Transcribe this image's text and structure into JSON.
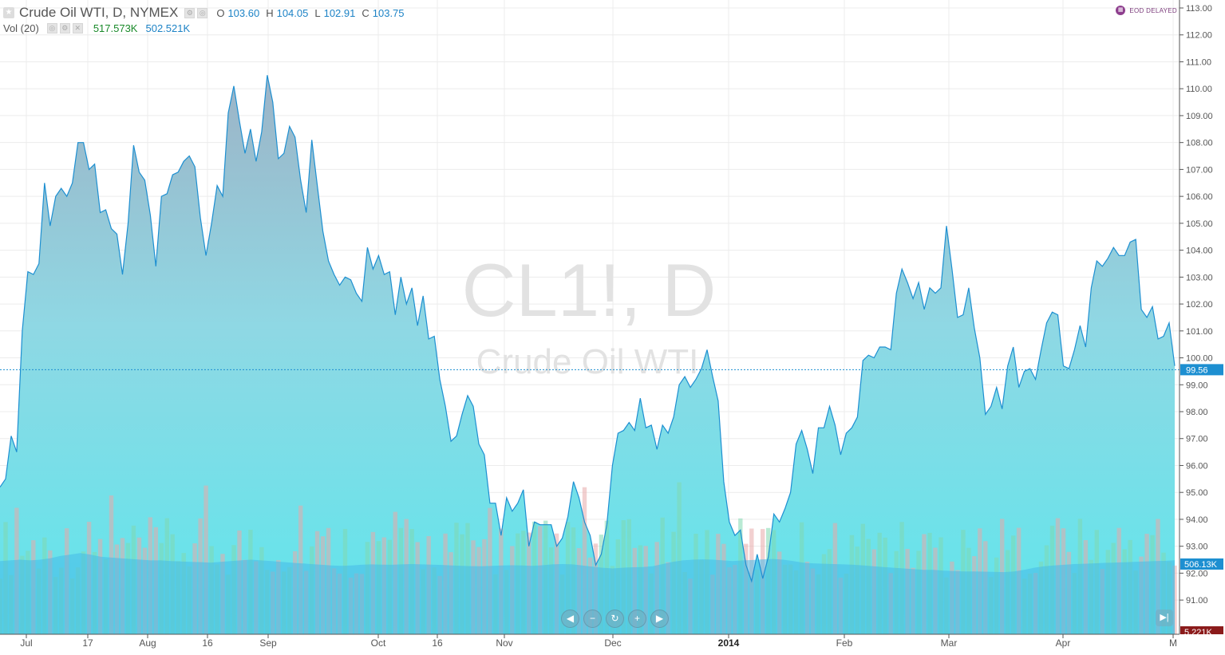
{
  "header": {
    "title": "Crude Oil WTI, D, NYMEX",
    "ohlc": [
      {
        "key": "O",
        "value": "103.60"
      },
      {
        "key": "H",
        "value": "104.05"
      },
      {
        "key": "L",
        "value": "102.91"
      },
      {
        "key": "C",
        "value": "103.75"
      }
    ]
  },
  "volume_legend": {
    "label": "Vol (20)",
    "value1": "517.573K",
    "value2": "502.521K"
  },
  "eod_badge": "EOD DELAYED",
  "watermark": {
    "symbol": "CL1!, D",
    "name": "Crude Oil WTI"
  },
  "price_scale_labels": [
    "113.00",
    "112.00",
    "111.00",
    "110.00",
    "109.00",
    "108.00",
    "107.00",
    "106.00",
    "105.00",
    "104.00",
    "103.00",
    "102.00",
    "101.00",
    "100.00",
    "99.00",
    "98.00",
    "97.00",
    "96.00",
    "95.00",
    "94.00",
    "93.00",
    "92.00",
    "91.00"
  ],
  "current_price_label": "99.56",
  "volume_ma_label": "506.13K",
  "volume_last_label": "5.221K",
  "time_labels": [
    "Jul",
    "17",
    "Aug",
    "16",
    "Sep",
    "Oct",
    "16",
    "Nov",
    "Dec",
    "2014",
    "Feb",
    "Mar",
    "Apr",
    "M"
  ],
  "nav_buttons": [
    "scroll-left",
    "zoom-out",
    "reset",
    "zoom-in",
    "scroll-right"
  ],
  "colors": {
    "line": "#1d8fd1",
    "price_tag": "#1d8fd1",
    "volume_up": "#7fd9b0",
    "volume_down": "#e7a9a9",
    "volume_ma": "#45b9e8"
  },
  "chart_data": {
    "type": "area",
    "title": "Crude Oil WTI, D, NYMEX",
    "y_range": [
      90.5,
      113.0
    ],
    "last_price": 99.56,
    "price_series": [
      {
        "x": "Jun 24",
        "y": 95.2
      },
      {
        "x": "Jun 27",
        "y": 95.5
      },
      {
        "x": "Jul 1",
        "y": 97.1
      },
      {
        "x": "Jul 2",
        "y": 96.5
      },
      {
        "x": "Jul 5",
        "y": 101.0
      },
      {
        "x": "Jul 9",
        "y": 103.2
      },
      {
        "x": "Jul 10",
        "y": 103.1
      },
      {
        "x": "Jul 11",
        "y": 103.5
      },
      {
        "x": "Jul 12",
        "y": 106.5
      },
      {
        "x": "Jul 14",
        "y": 104.9
      },
      {
        "x": "Jul 15",
        "y": 106.0
      },
      {
        "x": "Jul 16",
        "y": 106.3
      },
      {
        "x": "Jul 17",
        "y": 106.0
      },
      {
        "x": "Jul 18",
        "y": 106.5
      },
      {
        "x": "Jul 19",
        "y": 108.0
      },
      {
        "x": "Jul 20",
        "y": 108.0
      },
      {
        "x": "Jul 22",
        "y": 107.0
      },
      {
        "x": "Jul 23",
        "y": 107.2
      },
      {
        "x": "Jul 24",
        "y": 105.4
      },
      {
        "x": "Jul 25",
        "y": 105.5
      },
      {
        "x": "Jul 26",
        "y": 104.8
      },
      {
        "x": "Jul 29",
        "y": 104.6
      },
      {
        "x": "Jul 30",
        "y": 103.1
      },
      {
        "x": "Jul 31",
        "y": 105.0
      },
      {
        "x": "Aug 1",
        "y": 107.9
      },
      {
        "x": "Aug 2",
        "y": 106.9
      },
      {
        "x": "Aug 5",
        "y": 106.6
      },
      {
        "x": "Aug 6",
        "y": 105.3
      },
      {
        "x": "Aug 8",
        "y": 103.4
      },
      {
        "x": "Aug 9",
        "y": 106.0
      },
      {
        "x": "Aug 12",
        "y": 106.1
      },
      {
        "x": "Aug 13",
        "y": 106.8
      },
      {
        "x": "Aug 14",
        "y": 106.9
      },
      {
        "x": "Aug 15",
        "y": 107.3
      },
      {
        "x": "Aug 16",
        "y": 107.5
      },
      {
        "x": "Aug 17",
        "y": 107.1
      },
      {
        "x": "Aug 19",
        "y": 105.2
      },
      {
        "x": "Aug 20",
        "y": 103.8
      },
      {
        "x": "Aug 21",
        "y": 105.0
      },
      {
        "x": "Aug 22",
        "y": 106.4
      },
      {
        "x": "Aug 23",
        "y": 106.0
      },
      {
        "x": "Aug 26",
        "y": 109.1
      },
      {
        "x": "Aug 27",
        "y": 110.1
      },
      {
        "x": "Aug 28",
        "y": 108.8
      },
      {
        "x": "Aug 29",
        "y": 107.6
      },
      {
        "x": "Aug 30",
        "y": 108.5
      },
      {
        "x": "Sep 3",
        "y": 107.3
      },
      {
        "x": "Sep 4",
        "y": 108.4
      },
      {
        "x": "Sep 5",
        "y": 110.5
      },
      {
        "x": "Sep 6",
        "y": 109.5
      },
      {
        "x": "Sep 9",
        "y": 107.4
      },
      {
        "x": "Sep 10",
        "y": 107.6
      },
      {
        "x": "Sep 11",
        "y": 108.6
      },
      {
        "x": "Sep 12",
        "y": 108.2
      },
      {
        "x": "Sep 13",
        "y": 106.6
      },
      {
        "x": "Sep 16",
        "y": 105.4
      },
      {
        "x": "Sep 17",
        "y": 108.1
      },
      {
        "x": "Sep 18",
        "y": 106.4
      },
      {
        "x": "Sep 19",
        "y": 104.7
      },
      {
        "x": "Sep 20",
        "y": 103.6
      },
      {
        "x": "Sep 23",
        "y": 103.1
      },
      {
        "x": "Sep 24",
        "y": 102.7
      },
      {
        "x": "Sep 25",
        "y": 103.0
      },
      {
        "x": "Sep 26",
        "y": 102.9
      },
      {
        "x": "Sep 27",
        "y": 102.4
      },
      {
        "x": "Sep 30",
        "y": 102.1
      },
      {
        "x": "Oct 1",
        "y": 104.1
      },
      {
        "x": "Oct 2",
        "y": 103.3
      },
      {
        "x": "Oct 3",
        "y": 103.8
      },
      {
        "x": "Oct 4",
        "y": 103.1
      },
      {
        "x": "Oct 7",
        "y": 103.2
      },
      {
        "x": "Oct 8",
        "y": 101.6
      },
      {
        "x": "Oct 9",
        "y": 103.0
      },
      {
        "x": "Oct 10",
        "y": 102.0
      },
      {
        "x": "Oct 11",
        "y": 102.6
      },
      {
        "x": "Oct 14",
        "y": 101.2
      },
      {
        "x": "Oct 15",
        "y": 102.3
      },
      {
        "x": "Oct 16",
        "y": 100.7
      },
      {
        "x": "Oct 17",
        "y": 100.8
      },
      {
        "x": "Oct 18",
        "y": 99.2
      },
      {
        "x": "Oct 21",
        "y": 98.2
      },
      {
        "x": "Oct 22",
        "y": 96.9
      },
      {
        "x": "Oct 23",
        "y": 97.1
      },
      {
        "x": "Oct 24",
        "y": 97.9
      },
      {
        "x": "Oct 25",
        "y": 98.6
      },
      {
        "x": "Oct 28",
        "y": 98.2
      },
      {
        "x": "Oct 29",
        "y": 96.8
      },
      {
        "x": "Oct 30",
        "y": 96.4
      },
      {
        "x": "Oct 31",
        "y": 94.6
      },
      {
        "x": "Nov 1",
        "y": 94.6
      },
      {
        "x": "Nov 4",
        "y": 93.4
      },
      {
        "x": "Nov 5",
        "y": 94.8
      },
      {
        "x": "Nov 6",
        "y": 94.3
      },
      {
        "x": "Nov 7",
        "y": 94.6
      },
      {
        "x": "Nov 8",
        "y": 95.1
      },
      {
        "x": "Nov 11",
        "y": 93.0
      },
      {
        "x": "Nov 12",
        "y": 93.9
      },
      {
        "x": "Nov 13",
        "y": 93.8
      },
      {
        "x": "Nov 14",
        "y": 93.8
      },
      {
        "x": "Nov 15",
        "y": 93.8
      },
      {
        "x": "Nov 18",
        "y": 93.0
      },
      {
        "x": "Nov 19",
        "y": 93.3
      },
      {
        "x": "Nov 20",
        "y": 94.1
      },
      {
        "x": "Nov 21",
        "y": 95.4
      },
      {
        "x": "Nov 22",
        "y": 94.8
      },
      {
        "x": "Nov 25",
        "y": 93.9
      },
      {
        "x": "Nov 26",
        "y": 93.4
      },
      {
        "x": "Nov 27",
        "y": 92.3
      },
      {
        "x": "Nov 29",
        "y": 92.7
      },
      {
        "x": "Dec 2",
        "y": 93.8
      },
      {
        "x": "Dec 3",
        "y": 96.0
      },
      {
        "x": "Dec 4",
        "y": 97.2
      },
      {
        "x": "Dec 5",
        "y": 97.3
      },
      {
        "x": "Dec 6",
        "y": 97.6
      },
      {
        "x": "Dec 9",
        "y": 97.3
      },
      {
        "x": "Dec 10",
        "y": 98.5
      },
      {
        "x": "Dec 11",
        "y": 97.4
      },
      {
        "x": "Dec 12",
        "y": 97.5
      },
      {
        "x": "Dec 13",
        "y": 96.6
      },
      {
        "x": "Dec 16",
        "y": 97.5
      },
      {
        "x": "Dec 17",
        "y": 97.2
      },
      {
        "x": "Dec 18",
        "y": 97.8
      },
      {
        "x": "Dec 19",
        "y": 99.0
      },
      {
        "x": "Dec 20",
        "y": 99.3
      },
      {
        "x": "Dec 23",
        "y": 98.9
      },
      {
        "x": "Dec 24",
        "y": 99.2
      },
      {
        "x": "Dec 26",
        "y": 99.6
      },
      {
        "x": "Dec 27",
        "y": 100.3
      },
      {
        "x": "Dec 30",
        "y": 99.3
      },
      {
        "x": "Dec 31",
        "y": 98.4
      },
      {
        "x": "Jan 2",
        "y": 95.4
      },
      {
        "x": "Jan 3",
        "y": 93.9
      },
      {
        "x": "Jan 6",
        "y": 93.4
      },
      {
        "x": "Jan 7",
        "y": 93.6
      },
      {
        "x": "Jan 8",
        "y": 92.3
      },
      {
        "x": "Jan 9",
        "y": 91.7
      },
      {
        "x": "Jan 10",
        "y": 92.7
      },
      {
        "x": "Jan 13",
        "y": 91.8
      },
      {
        "x": "Jan 14",
        "y": 92.6
      },
      {
        "x": "Jan 15",
        "y": 94.2
      },
      {
        "x": "Jan 16",
        "y": 93.9
      },
      {
        "x": "Jan 17",
        "y": 94.4
      },
      {
        "x": "Jan 21",
        "y": 95.0
      },
      {
        "x": "Jan 22",
        "y": 96.8
      },
      {
        "x": "Jan 23",
        "y": 97.3
      },
      {
        "x": "Jan 24",
        "y": 96.6
      },
      {
        "x": "Jan 27",
        "y": 95.7
      },
      {
        "x": "Jan 28",
        "y": 97.4
      },
      {
        "x": "Jan 29",
        "y": 97.4
      },
      {
        "x": "Jan 30",
        "y": 98.2
      },
      {
        "x": "Jan 31",
        "y": 97.5
      },
      {
        "x": "Feb 3",
        "y": 96.4
      },
      {
        "x": "Feb 4",
        "y": 97.2
      },
      {
        "x": "Feb 5",
        "y": 97.4
      },
      {
        "x": "Feb 6",
        "y": 97.8
      },
      {
        "x": "Feb 7",
        "y": 99.9
      },
      {
        "x": "Feb 10",
        "y": 100.1
      },
      {
        "x": "Feb 11",
        "y": 100.0
      },
      {
        "x": "Feb 12",
        "y": 100.4
      },
      {
        "x": "Feb 13",
        "y": 100.4
      },
      {
        "x": "Feb 14",
        "y": 100.3
      },
      {
        "x": "Feb 18",
        "y": 102.4
      },
      {
        "x": "Feb 19",
        "y": 103.3
      },
      {
        "x": "Feb 20",
        "y": 102.8
      },
      {
        "x": "Feb 21",
        "y": 102.2
      },
      {
        "x": "Feb 24",
        "y": 102.8
      },
      {
        "x": "Feb 25",
        "y": 101.8
      },
      {
        "x": "Feb 26",
        "y": 102.6
      },
      {
        "x": "Feb 27",
        "y": 102.4
      },
      {
        "x": "Feb 28",
        "y": 102.6
      },
      {
        "x": "Mar 3",
        "y": 104.9
      },
      {
        "x": "Mar 4",
        "y": 103.3
      },
      {
        "x": "Mar 5",
        "y": 101.5
      },
      {
        "x": "Mar 6",
        "y": 101.6
      },
      {
        "x": "Mar 7",
        "y": 102.6
      },
      {
        "x": "Mar 10",
        "y": 101.1
      },
      {
        "x": "Mar 11",
        "y": 100.0
      },
      {
        "x": "Mar 12",
        "y": 97.9
      },
      {
        "x": "Mar 13",
        "y": 98.2
      },
      {
        "x": "Mar 14",
        "y": 98.9
      },
      {
        "x": "Mar 17",
        "y": 98.1
      },
      {
        "x": "Mar 18",
        "y": 99.7
      },
      {
        "x": "Mar 19",
        "y": 100.4
      },
      {
        "x": "Mar 20",
        "y": 98.9
      },
      {
        "x": "Mar 21",
        "y": 99.5
      },
      {
        "x": "Mar 24",
        "y": 99.6
      },
      {
        "x": "Mar 25",
        "y": 99.2
      },
      {
        "x": "Mar 26",
        "y": 100.3
      },
      {
        "x": "Mar 27",
        "y": 101.3
      },
      {
        "x": "Mar 28",
        "y": 101.7
      },
      {
        "x": "Mar 31",
        "y": 101.6
      },
      {
        "x": "Apr 1",
        "y": 99.7
      },
      {
        "x": "Apr 2",
        "y": 99.6
      },
      {
        "x": "Apr 3",
        "y": 100.3
      },
      {
        "x": "Apr 4",
        "y": 101.2
      },
      {
        "x": "Apr 7",
        "y": 100.4
      },
      {
        "x": "Apr 8",
        "y": 102.6
      },
      {
        "x": "Apr 9",
        "y": 103.6
      },
      {
        "x": "Apr 10",
        "y": 103.4
      },
      {
        "x": "Apr 11",
        "y": 103.7
      },
      {
        "x": "Apr 14",
        "y": 104.1
      },
      {
        "x": "Apr 15",
        "y": 103.8
      },
      {
        "x": "Apr 16",
        "y": 103.8
      },
      {
        "x": "Apr 17",
        "y": 104.3
      },
      {
        "x": "Apr 21",
        "y": 104.4
      },
      {
        "x": "Apr 22",
        "y": 101.8
      },
      {
        "x": "Apr 23",
        "y": 101.5
      },
      {
        "x": "Apr 24",
        "y": 101.9
      },
      {
        "x": "Apr 25",
        "y": 100.7
      },
      {
        "x": "Apr 28",
        "y": 100.8
      },
      {
        "x": "Apr 29",
        "y": 101.3
      },
      {
        "x": "Apr 30",
        "y": 99.7
      }
    ],
    "volume_ma_series": [
      500,
      505,
      510,
      505,
      510,
      520,
      535,
      545,
      555,
      545,
      530,
      525,
      520,
      515,
      510,
      505,
      505,
      500,
      498,
      495,
      493,
      490,
      495,
      500,
      505,
      510,
      505,
      500,
      495,
      490,
      485,
      480,
      475,
      470,
      468,
      470,
      475,
      478,
      476,
      475,
      478,
      480,
      478,
      476,
      474,
      470,
      468,
      466,
      465,
      468,
      470,
      472,
      470,
      468,
      472,
      478,
      480,
      478,
      470,
      462,
      455,
      450,
      455,
      458,
      460,
      465,
      480,
      495,
      505,
      510,
      512,
      510,
      505,
      500,
      505,
      508,
      512,
      515,
      510,
      500,
      490,
      485,
      482,
      480,
      478,
      475,
      470,
      465,
      460,
      455,
      450,
      445,
      440,
      440,
      435,
      432,
      430,
      430,
      428,
      427,
      425,
      430,
      440,
      455,
      465,
      470,
      475,
      480,
      482,
      485,
      488,
      490,
      492,
      495,
      498,
      500,
      502,
      506
    ]
  }
}
